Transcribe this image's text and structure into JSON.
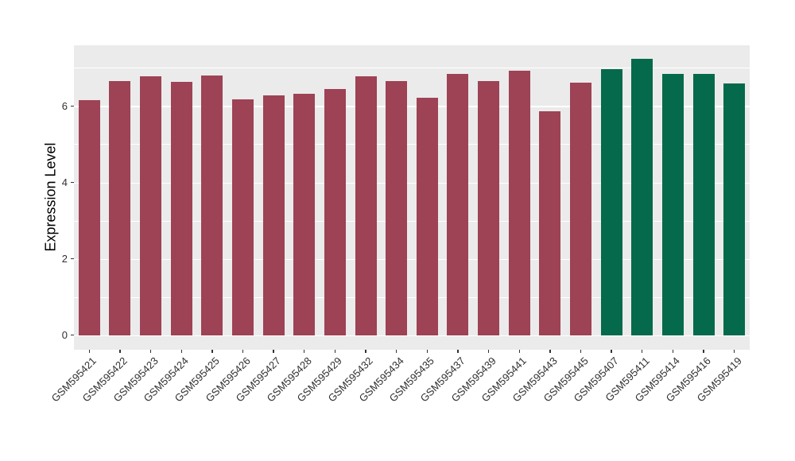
{
  "chart_data": {
    "type": "bar",
    "title": "",
    "xlabel": "",
    "ylabel": "Expression Level",
    "ylim": [
      -0.38,
      7.59
    ],
    "yticks": [
      0,
      2,
      4,
      6
    ],
    "yminor": [
      1,
      3,
      5,
      7
    ],
    "grid": "on",
    "legend": "none",
    "panel_bg": "#EBEBEB",
    "grid_color": "#FFFFFF",
    "categories": [
      "GSM595421",
      "GSM595422",
      "GSM595423",
      "GSM595424",
      "GSM595425",
      "GSM595426",
      "GSM595427",
      "GSM595428",
      "GSM595429",
      "GSM595432",
      "GSM595434",
      "GSM595435",
      "GSM595437",
      "GSM595439",
      "GSM595441",
      "GSM595443",
      "GSM595445",
      "GSM595407",
      "GSM595411",
      "GSM595414",
      "GSM595416",
      "GSM595419"
    ],
    "values": [
      6.16,
      6.65,
      6.77,
      6.64,
      6.8,
      6.17,
      6.28,
      6.32,
      6.45,
      6.77,
      6.65,
      6.21,
      6.85,
      6.65,
      6.93,
      5.87,
      6.62,
      6.96,
      7.24,
      6.85,
      6.85,
      6.59
    ],
    "bar_colors": [
      "#9E4255",
      "#9E4255",
      "#9E4255",
      "#9E4255",
      "#9E4255",
      "#9E4255",
      "#9E4255",
      "#9E4255",
      "#9E4255",
      "#9E4255",
      "#9E4255",
      "#9E4255",
      "#9E4255",
      "#9E4255",
      "#9E4255",
      "#9E4255",
      "#9E4255",
      "#046A4B",
      "#046A4B",
      "#046A4B",
      "#046A4B",
      "#046A4B"
    ],
    "group_colors": {
      "maroon_group": "#9E4255",
      "green_group": "#046A4B"
    }
  }
}
